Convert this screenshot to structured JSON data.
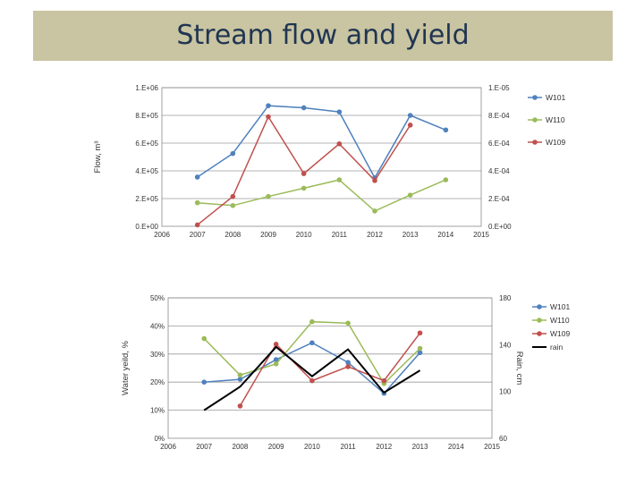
{
  "page": {
    "title": "Stream flow and yield"
  },
  "chart_data": [
    {
      "type": "line",
      "xlim": [
        2006,
        2015
      ],
      "x_ticks": [
        "2006",
        "2007",
        "2008",
        "2009",
        "2010",
        "2011",
        "2012",
        "2013",
        "2014",
        "2015"
      ],
      "ylabel": "Flow, m³",
      "y_ticks_left": [
        "0.E+00",
        "2.E+05",
        "4.E+05",
        "6.E+05",
        "8.E+05",
        "1.E+06"
      ],
      "y_ticks_right": [
        "0.E+00",
        "2.E-04",
        "4.E-04",
        "6.E-04",
        "8.E-04",
        "1.E-05"
      ],
      "ylim": [
        0,
        1000000
      ],
      "grid": true,
      "legend_position": "right",
      "series": [
        {
          "name": "W101",
          "color": "#4f81bd",
          "x": [
            2007,
            2008,
            2009,
            2010,
            2011,
            2012,
            2013,
            2014
          ],
          "values": [
            355000,
            525000,
            870000,
            855000,
            825000,
            350000,
            800000,
            695000
          ]
        },
        {
          "name": "W110",
          "color": "#9bbb59",
          "x": [
            2007,
            2008,
            2009,
            2010,
            2011,
            2012,
            2013,
            2014
          ],
          "values": [
            170000,
            150000,
            215000,
            275000,
            335000,
            110000,
            225000,
            335000
          ]
        },
        {
          "name": "W109",
          "color": "#c0504d",
          "x": [
            2007,
            2008,
            2009,
            2010,
            2011,
            2012,
            2013
          ],
          "values": [
            10000,
            215000,
            790000,
            380000,
            595000,
            330000,
            730000
          ]
        }
      ]
    },
    {
      "type": "line",
      "xlim": [
        2006,
        2015
      ],
      "x_ticks": [
        "2006",
        "2007",
        "2008",
        "2009",
        "2010",
        "2011",
        "2012",
        "2013",
        "2014",
        "2015"
      ],
      "ylabel": "Water yeild, %",
      "y2label": "Rain, cm",
      "y_ticks_left": [
        "0%",
        "10%",
        "20%",
        "30%",
        "40%",
        "50%"
      ],
      "y_ticks_right": [
        "60",
        "100",
        "140",
        "180"
      ],
      "ylim": [
        0,
        50
      ],
      "y2lim": [
        60,
        180
      ],
      "grid": true,
      "legend_position": "right",
      "series": [
        {
          "name": "W101",
          "color": "#4f81bd",
          "axis": "left",
          "x": [
            2007,
            2008,
            2009,
            2010,
            2011,
            2012,
            2013
          ],
          "values": [
            20,
            21,
            28,
            34,
            27,
            16,
            30.5
          ]
        },
        {
          "name": "W110",
          "color": "#9bbb59",
          "axis": "left",
          "x": [
            2007,
            2008,
            2009,
            2010,
            2011,
            2012,
            2013
          ],
          "values": [
            35.5,
            22.5,
            26.5,
            41.5,
            41,
            19.5,
            32
          ]
        },
        {
          "name": "W109",
          "color": "#c0504d",
          "axis": "left",
          "x": [
            2008,
            2009,
            2010,
            2011,
            2012,
            2013
          ],
          "values": [
            11.5,
            33.5,
            20.5,
            25.5,
            20.5,
            37.5
          ]
        },
        {
          "name": "rain",
          "color": "#000000",
          "axis": "right",
          "x": [
            2007,
            2008,
            2009,
            2010,
            2011,
            2012,
            2013
          ],
          "values": [
            84,
            104,
            138,
            113,
            136,
            99,
            118
          ]
        }
      ]
    }
  ]
}
